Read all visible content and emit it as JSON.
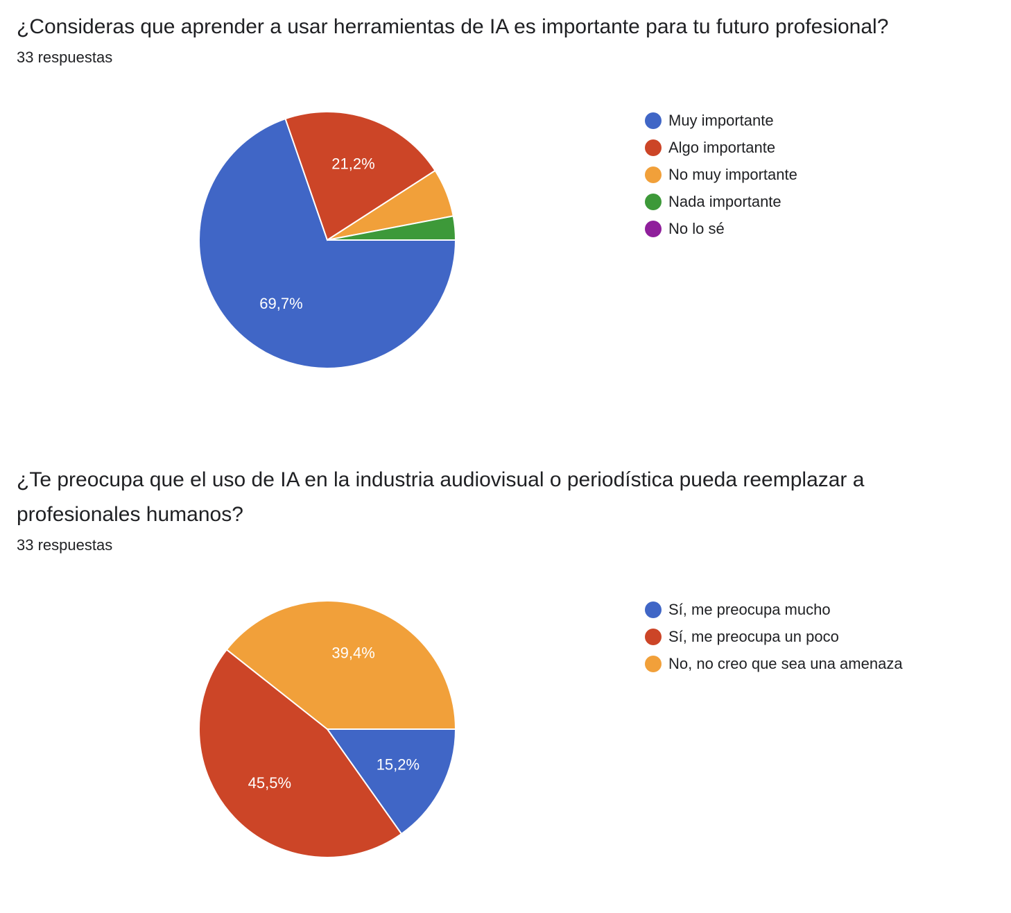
{
  "chart_data": [
    {
      "type": "pie",
      "title": "¿Consideras que aprender a usar herramientas de IA es importante para tu futuro profesional?",
      "subtitle": "33 respuestas",
      "categories": [
        "Muy importante",
        "Algo importante",
        "No muy importante",
        "Nada importante",
        "No lo sé"
      ],
      "values": [
        69.7,
        21.2,
        6.1,
        3.0,
        0
      ],
      "value_labels": [
        "69,7%",
        "21,2%",
        null,
        null,
        null
      ],
      "colors": [
        "#4066c6",
        "#cc4527",
        "#f1a03a",
        "#3d9939",
        "#8f1f9b"
      ],
      "legend": "right"
    },
    {
      "type": "pie",
      "title": "¿Te preocupa que el uso de IA en la industria audiovisual o periodística pueda reemplazar a profesionales humanos?",
      "subtitle": "33 respuestas",
      "categories": [
        "Sí, me preocupa mucho",
        "Sí, me preocupa un poco",
        "No, no creo que sea una amenaza"
      ],
      "values": [
        15.2,
        45.5,
        39.4
      ],
      "value_labels": [
        "15,2%",
        "45,5%",
        "39,4%"
      ],
      "colors": [
        "#4066c6",
        "#cc4527",
        "#f1a03a"
      ],
      "legend": "right"
    }
  ]
}
